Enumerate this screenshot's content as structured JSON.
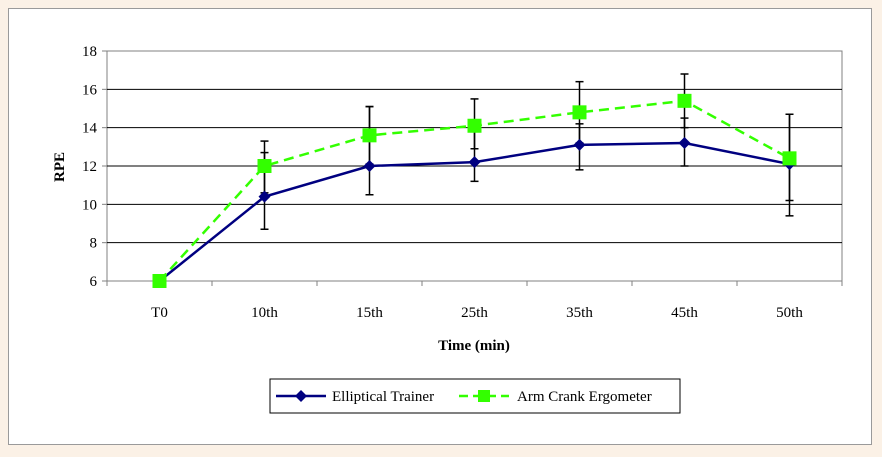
{
  "chart_data": {
    "type": "line",
    "categories": [
      "T0",
      "10th",
      "15th",
      "25th",
      "35th",
      "45th",
      "50th"
    ],
    "xlabel": "Time (min)",
    "ylabel": "RPE",
    "ylim": [
      6,
      18
    ],
    "yticks": [
      6,
      8,
      10,
      12,
      14,
      16,
      18
    ],
    "grid": true,
    "legend": "bottom",
    "series": [
      {
        "name": "Elliptical Trainer",
        "color": "#000080",
        "marker": "diamond",
        "line": "solid",
        "values": [
          6.0,
          10.4,
          12.0,
          12.2,
          13.1,
          13.2,
          12.1
        ],
        "error_low": [
          6.0,
          8.7,
          10.5,
          11.2,
          11.8,
          12.0,
          9.4
        ],
        "error_high": [
          6.0,
          12.7,
          15.1,
          13.8,
          14.2,
          14.5,
          14.7
        ]
      },
      {
        "name": "Arm Crank Ergometer",
        "color": "#33ff00",
        "marker": "square",
        "line": "dashed",
        "values": [
          6.0,
          12.0,
          13.6,
          14.1,
          14.8,
          15.4,
          12.4
        ],
        "error_low": [
          6.0,
          10.6,
          12.1,
          12.9,
          13.2,
          14.0,
          10.2
        ],
        "error_high": [
          6.0,
          13.3,
          15.1,
          15.5,
          16.4,
          16.8,
          14.7
        ]
      }
    ]
  }
}
